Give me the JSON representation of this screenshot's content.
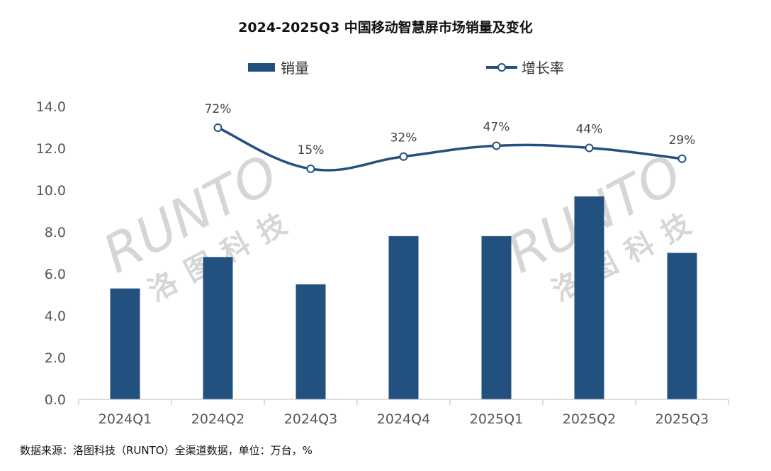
{
  "chart_data": {
    "type": "bar+line",
    "title": "2024-2025Q3 中国移动智慧屏市场销量及变化",
    "categories": [
      "2024Q1",
      "2024Q2",
      "2024Q3",
      "2024Q4",
      "2025Q1",
      "2025Q2",
      "2025Q3"
    ],
    "series": [
      {
        "name": "销量",
        "type": "bar",
        "axis": "primary",
        "values": [
          5.3,
          6.8,
          5.5,
          7.8,
          7.8,
          9.7,
          7.0
        ],
        "color": "#23517f"
      },
      {
        "name": "增长率",
        "type": "line",
        "axis": "secondary",
        "values": [
          null,
          72,
          15,
          32,
          47,
          44,
          29
        ],
        "labels": [
          "",
          "72%",
          "15%",
          "32%",
          "47%",
          "44%",
          "29%"
        ],
        "color": "#23517f"
      }
    ],
    "yticks": [
      "0.0",
      "2.0",
      "4.0",
      "6.0",
      "8.0",
      "10.0",
      "12.0",
      "14.0"
    ],
    "ylim": [
      0,
      14
    ],
    "grid": false,
    "legend_position": "top"
  },
  "source_note": "数据来源：洛图科技（RUNTO）全渠道数据，单位：万台，%",
  "watermark": "RUNTO 洛图科技"
}
